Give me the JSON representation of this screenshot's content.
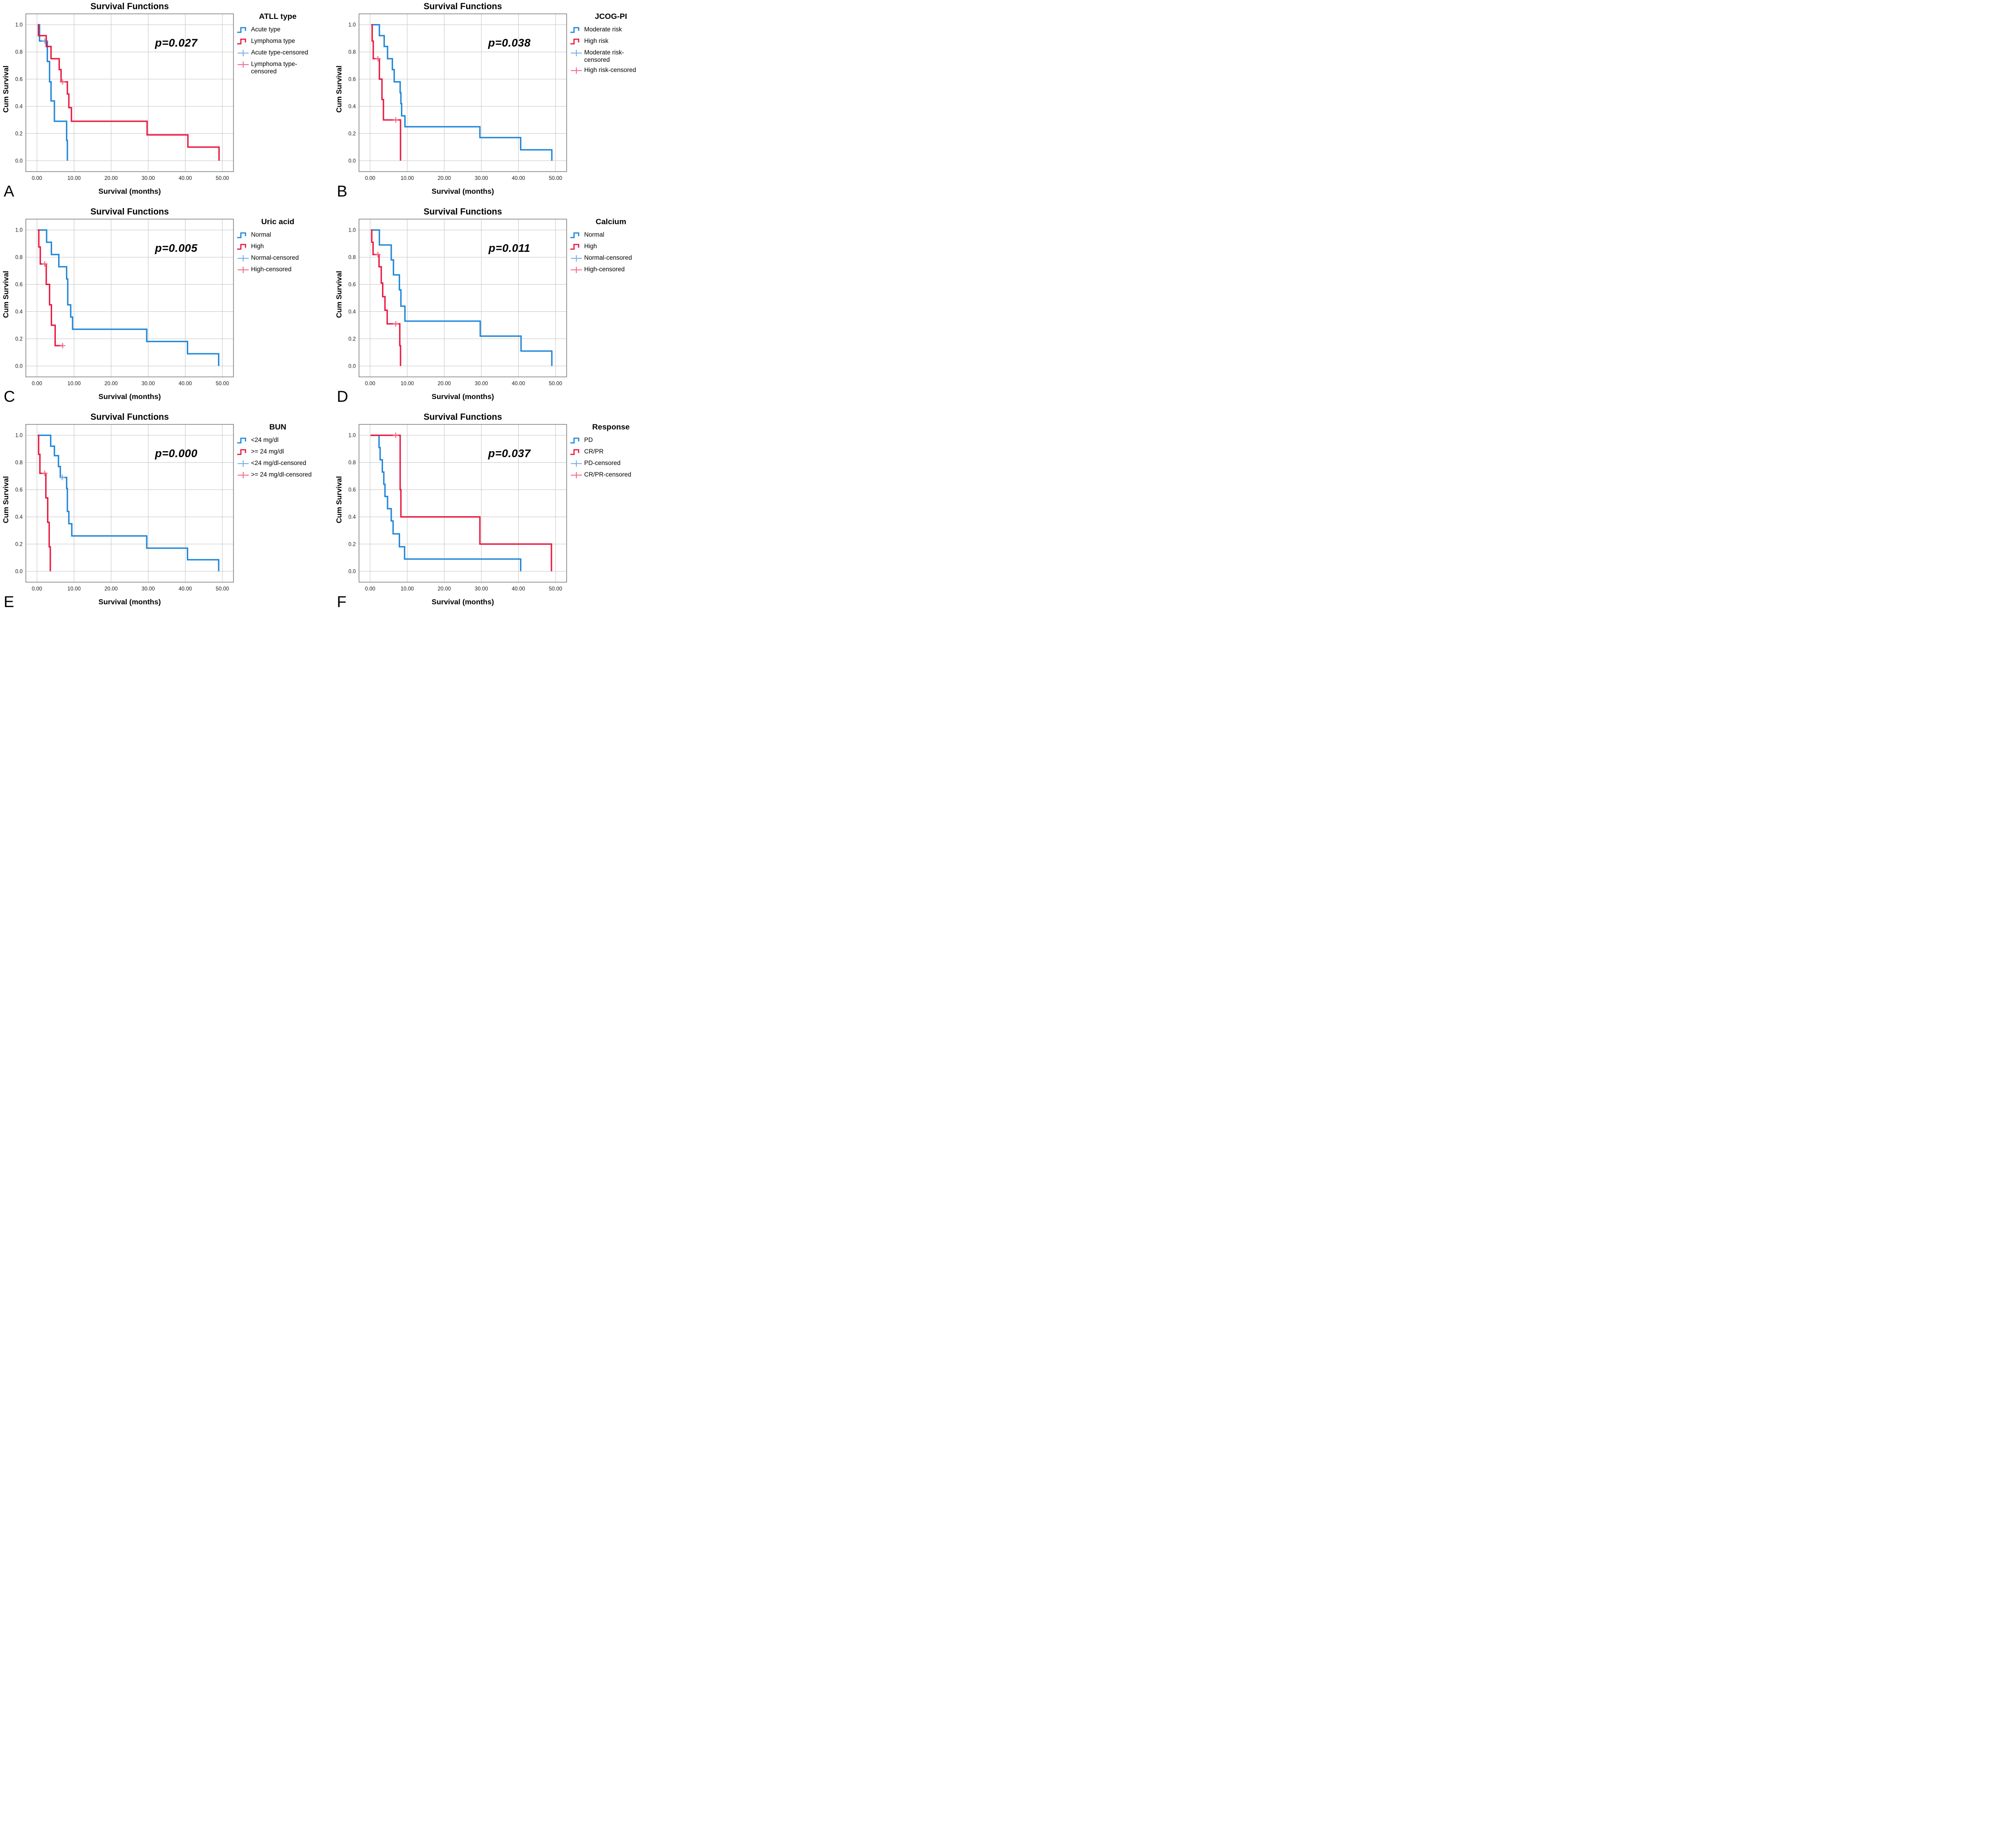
{
  "figure": {
    "background": "#ffffff"
  },
  "colors": {
    "series_blue": "#1f86d8",
    "series_red": "#e9173f",
    "censor_blue": "#7ab1e8",
    "censor_red": "#f46f8d",
    "grid": "#c7c7c7",
    "frame": "#7a7a7a",
    "text": "#000000"
  },
  "axes": {
    "xlim": [
      -3,
      53
    ],
    "ylim": [
      -0.08,
      1.08
    ],
    "xticks": {
      "values": [
        0,
        10,
        20,
        30,
        40,
        50
      ],
      "labels": [
        "0.00",
        "10.00",
        "20.00",
        "30.00",
        "40.00",
        "50.00"
      ]
    },
    "yticks": {
      "values": [
        0.0,
        0.2,
        0.4,
        0.6,
        0.8,
        1.0
      ],
      "labels": [
        "0.0",
        "0.2",
        "0.4",
        "0.6",
        "0.8",
        "1.0"
      ]
    },
    "grid": true,
    "legend_position": "right"
  },
  "chart_data": [
    {
      "panel_letter": "A",
      "type": "km_step",
      "title": "Survival Functions",
      "xlabel": "Survival (months)",
      "ylabel": "Cum Survival",
      "p_label": "p=0.027",
      "legend_title": "ATLL type",
      "legend": [
        {
          "label": "Acute type",
          "marker": "step-blue"
        },
        {
          "label": "Lymphoma type",
          "marker": "step-red"
        },
        {
          "label": "Acute type-censored",
          "marker": "plus-blue"
        },
        {
          "label": "Lymphoma type-censored",
          "marker": "plus-red"
        }
      ],
      "series": [
        {
          "name": "Acute type",
          "color": "#1f86d8",
          "censor_color": "#7ab1e8",
          "points": [
            [
              0.5,
              1.0
            ],
            [
              0.7,
              0.88
            ],
            [
              2.8,
              0.73
            ],
            [
              3.4,
              0.58
            ],
            [
              3.8,
              0.44
            ],
            [
              4.7,
              0.29
            ],
            [
              8.0,
              0.15
            ],
            [
              8.2,
              0.0
            ]
          ],
          "censored": [
            [
              2.1,
              0.88
            ]
          ]
        },
        {
          "name": "Lymphoma type",
          "color": "#e9173f",
          "censor_color": "#f46f8d",
          "points": [
            [
              0.2,
              1.0
            ],
            [
              0.4,
              0.92
            ],
            [
              2.5,
              0.84
            ],
            [
              3.8,
              0.75
            ],
            [
              6.0,
              0.67
            ],
            [
              6.5,
              0.58
            ],
            [
              8.2,
              0.49
            ],
            [
              8.6,
              0.39
            ],
            [
              9.3,
              0.29
            ],
            [
              29.7,
              0.19
            ],
            [
              40.7,
              0.1
            ],
            [
              49.1,
              0.0
            ]
          ],
          "censored": [
            [
              6.9,
              0.58
            ]
          ]
        }
      ]
    },
    {
      "panel_letter": "B",
      "type": "km_step",
      "title": "Survival Functions",
      "xlabel": "Survival (months)",
      "ylabel": "Cum Survival",
      "p_label": "p=0.038",
      "legend_title": "JCOG-PI",
      "legend": [
        {
          "label": "Moderate risk",
          "marker": "step-blue"
        },
        {
          "label": "High risk",
          "marker": "step-red"
        },
        {
          "label": "Moderate risk-censored",
          "marker": "plus-blue"
        },
        {
          "label": "High risk-censored",
          "marker": "plus-red"
        }
      ],
      "series": [
        {
          "name": "Moderate risk",
          "color": "#1f86d8",
          "censor_color": "#7ab1e8",
          "points": [
            [
              0.4,
              1.0
            ],
            [
              2.5,
              0.92
            ],
            [
              3.8,
              0.84
            ],
            [
              4.7,
              0.75
            ],
            [
              6.0,
              0.67
            ],
            [
              6.5,
              0.58
            ],
            [
              8.1,
              0.5
            ],
            [
              8.3,
              0.42
            ],
            [
              8.5,
              0.33
            ],
            [
              9.4,
              0.25
            ],
            [
              29.6,
              0.17
            ],
            [
              40.6,
              0.08
            ],
            [
              49.0,
              0.0
            ]
          ],
          "censored": []
        },
        {
          "name": "High risk",
          "color": "#e9173f",
          "censor_color": "#f46f8d",
          "points": [
            [
              0.3,
              1.0
            ],
            [
              0.55,
              0.88
            ],
            [
              0.85,
              0.75
            ],
            [
              2.5,
              0.6
            ],
            [
              3.2,
              0.45
            ],
            [
              3.6,
              0.3
            ],
            [
              8.2,
              0.0
            ]
          ],
          "censored": [
            [
              2.1,
              0.75
            ],
            [
              6.9,
              0.3
            ]
          ]
        }
      ]
    },
    {
      "panel_letter": "C",
      "type": "km_step",
      "title": "Survival Functions",
      "xlabel": "Survival (months)",
      "ylabel": "Cum Survival",
      "p_label": "p=0.005",
      "legend_title": "Uric acid",
      "legend": [
        {
          "label": "Normal",
          "marker": "step-blue"
        },
        {
          "label": "High",
          "marker": "step-red"
        },
        {
          "label": "Normal-censored",
          "marker": "plus-blue"
        },
        {
          "label": "High-censored",
          "marker": "plus-red"
        }
      ],
      "series": [
        {
          "name": "Normal",
          "color": "#1f86d8",
          "censor_color": "#7ab1e8",
          "points": [
            [
              0.5,
              1.0
            ],
            [
              2.6,
              0.91
            ],
            [
              3.9,
              0.82
            ],
            [
              5.9,
              0.73
            ],
            [
              8.0,
              0.64
            ],
            [
              8.3,
              0.45
            ],
            [
              9.1,
              0.36
            ],
            [
              9.6,
              0.27
            ],
            [
              29.6,
              0.18
            ],
            [
              40.6,
              0.09
            ],
            [
              49.0,
              0.0
            ]
          ],
          "censored": []
        },
        {
          "name": "High",
          "color": "#e9173f",
          "censor_color": "#f46f8d",
          "points": [
            [
              0.2,
              1.0
            ],
            [
              0.5,
              0.875
            ],
            [
              0.9,
              0.75
            ],
            [
              2.5,
              0.6
            ],
            [
              3.4,
              0.45
            ],
            [
              3.9,
              0.3
            ],
            [
              4.9,
              0.15
            ],
            [
              7.1,
              0.15
            ]
          ],
          "censored": [
            [
              2.1,
              0.75
            ],
            [
              6.9,
              0.15
            ]
          ]
        }
      ]
    },
    {
      "panel_letter": "D",
      "type": "km_step",
      "title": "Survival Functions",
      "xlabel": "Survival (months)",
      "ylabel": "Cum Survival",
      "p_label": "p=0.011",
      "legend_title": "Calcium",
      "legend": [
        {
          "label": "Normal",
          "marker": "step-blue"
        },
        {
          "label": "High",
          "marker": "step-red"
        },
        {
          "label": "Normal-censored",
          "marker": "plus-blue"
        },
        {
          "label": "High-censored",
          "marker": "plus-red"
        }
      ],
      "series": [
        {
          "name": "Normal",
          "color": "#1f86d8",
          "censor_color": "#7ab1e8",
          "points": [
            [
              0.5,
              1.0
            ],
            [
              2.5,
              0.89
            ],
            [
              5.7,
              0.78
            ],
            [
              6.3,
              0.67
            ],
            [
              7.9,
              0.56
            ],
            [
              8.3,
              0.44
            ],
            [
              9.4,
              0.33
            ],
            [
              29.7,
              0.22
            ],
            [
              40.7,
              0.11
            ],
            [
              49.0,
              0.0
            ]
          ],
          "censored": []
        },
        {
          "name": "High",
          "color": "#e9173f",
          "censor_color": "#f46f8d",
          "points": [
            [
              0.2,
              1.0
            ],
            [
              0.45,
              0.91
            ],
            [
              0.8,
              0.82
            ],
            [
              2.4,
              0.73
            ],
            [
              3.0,
              0.61
            ],
            [
              3.4,
              0.51
            ],
            [
              4.0,
              0.41
            ],
            [
              4.6,
              0.31
            ],
            [
              8.0,
              0.15
            ],
            [
              8.2,
              0.0
            ]
          ],
          "censored": [
            [
              2.1,
              0.82
            ],
            [
              6.9,
              0.31
            ]
          ]
        }
      ]
    },
    {
      "panel_letter": "E",
      "type": "km_step",
      "title": "Survival Functions",
      "xlabel": "Survival (months)",
      "ylabel": "Cum Survival",
      "p_label": "p=0.000",
      "legend_title": "BUN",
      "legend": [
        {
          "label": "<24 mg/dl",
          "marker": "step-blue"
        },
        {
          "label": ">= 24 mg/dl",
          "marker": "step-red"
        },
        {
          "label": "<24 mg/dl-censored",
          "marker": "plus-blue"
        },
        {
          "label": ">= 24 mg/dl-censored",
          "marker": "plus-red"
        }
      ],
      "series": [
        {
          "name": "<24 mg/dl",
          "color": "#1f86d8",
          "censor_color": "#7ab1e8",
          "points": [
            [
              0.5,
              1.0
            ],
            [
              3.7,
              0.92
            ],
            [
              4.7,
              0.85
            ],
            [
              5.8,
              0.77
            ],
            [
              6.3,
              0.69
            ],
            [
              8.0,
              0.61
            ],
            [
              8.2,
              0.44
            ],
            [
              8.6,
              0.35
            ],
            [
              9.4,
              0.26
            ],
            [
              29.6,
              0.17
            ],
            [
              40.6,
              0.085
            ],
            [
              49.0,
              0.0
            ]
          ],
          "censored": [
            [
              6.8,
              0.69
            ]
          ]
        },
        {
          "name": ">= 24 mg/dl",
          "color": "#e9173f",
          "censor_color": "#f46f8d",
          "points": [
            [
              0.2,
              1.0
            ],
            [
              0.45,
              0.86
            ],
            [
              0.8,
              0.72
            ],
            [
              2.4,
              0.54
            ],
            [
              2.9,
              0.36
            ],
            [
              3.3,
              0.18
            ],
            [
              3.6,
              0.0
            ]
          ],
          "censored": [
            [
              2.1,
              0.72
            ]
          ]
        }
      ]
    },
    {
      "panel_letter": "F",
      "type": "km_step",
      "title": "Survival Functions",
      "xlabel": "Survival (months)",
      "ylabel": "Cum Survival",
      "p_label": "p=0.037",
      "legend_title": "Response",
      "legend": [
        {
          "label": "PD",
          "marker": "step-blue"
        },
        {
          "label": "CR/PR",
          "marker": "step-red"
        },
        {
          "label": "PD-censored",
          "marker": "plus-blue"
        },
        {
          "label": "CR/PR-censored",
          "marker": "plus-red"
        }
      ],
      "series": [
        {
          "name": "PD",
          "color": "#1f86d8",
          "censor_color": "#7ab1e8",
          "points": [
            [
              0.3,
              1.0
            ],
            [
              2.4,
              0.91
            ],
            [
              2.7,
              0.82
            ],
            [
              3.3,
              0.73
            ],
            [
              3.7,
              0.64
            ],
            [
              4.0,
              0.55
            ],
            [
              4.7,
              0.46
            ],
            [
              5.7,
              0.37
            ],
            [
              6.2,
              0.275
            ],
            [
              7.9,
              0.18
            ],
            [
              9.3,
              0.09
            ],
            [
              40.6,
              0.0
            ]
          ],
          "censored": []
        },
        {
          "name": "CR/PR",
          "color": "#e9173f",
          "censor_color": "#f46f8d",
          "points": [
            [
              0.1,
              1.0
            ],
            [
              8.1,
              0.6
            ],
            [
              8.3,
              0.4
            ],
            [
              29.6,
              0.2
            ],
            [
              48.9,
              0.0
            ]
          ],
          "censored": [
            [
              6.9,
              1.0
            ]
          ]
        }
      ]
    }
  ]
}
